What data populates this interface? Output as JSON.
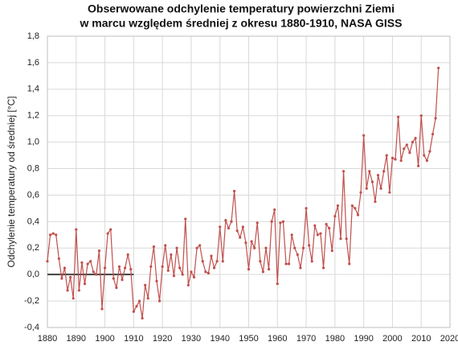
{
  "chart_data": {
    "type": "line",
    "title": [
      "Obserwowane odchylenie temperatury powierzchni Ziemi",
      "w marcu względem średniej z okresu 1880-1910, NASA GISS"
    ],
    "y_label": "Odchylenie temperatury od średniej [°C]",
    "x": [
      1880,
      1881,
      1882,
      1883,
      1884,
      1885,
      1886,
      1887,
      1888,
      1889,
      1890,
      1891,
      1892,
      1893,
      1894,
      1895,
      1896,
      1897,
      1898,
      1899,
      1900,
      1901,
      1902,
      1903,
      1904,
      1905,
      1906,
      1907,
      1908,
      1909,
      1910,
      1911,
      1912,
      1913,
      1914,
      1915,
      1916,
      1917,
      1918,
      1919,
      1920,
      1921,
      1922,
      1923,
      1924,
      1925,
      1926,
      1927,
      1928,
      1929,
      1930,
      1931,
      1932,
      1933,
      1934,
      1935,
      1936,
      1937,
      1938,
      1939,
      1940,
      1941,
      1942,
      1943,
      1944,
      1945,
      1946,
      1947,
      1948,
      1949,
      1950,
      1951,
      1952,
      1953,
      1954,
      1955,
      1956,
      1957,
      1958,
      1959,
      1960,
      1961,
      1962,
      1963,
      1964,
      1965,
      1966,
      1967,
      1968,
      1969,
      1970,
      1971,
      1972,
      1973,
      1974,
      1975,
      1976,
      1977,
      1978,
      1979,
      1980,
      1981,
      1982,
      1983,
      1984,
      1985,
      1986,
      1987,
      1988,
      1989,
      1990,
      1991,
      1992,
      1993,
      1994,
      1995,
      1996,
      1997,
      1998,
      1999,
      2000,
      2001,
      2002,
      2003,
      2004,
      2005,
      2006,
      2007,
      2008,
      2009,
      2010,
      2011,
      2012,
      2013,
      2014,
      2015,
      2016
    ],
    "series": [
      {
        "color": "#c0504d",
        "values": [
          0.1,
          0.3,
          0.31,
          0.3,
          0.12,
          -0.03,
          0.05,
          -0.12,
          -0.02,
          -0.18,
          0.34,
          -0.12,
          0.09,
          -0.07,
          0.08,
          0.1,
          0.02,
          0.0,
          0.18,
          -0.26,
          0.05,
          0.31,
          0.34,
          -0.03,
          -0.1,
          0.06,
          -0.04,
          0.05,
          0.15,
          0.04,
          -0.28,
          -0.24,
          -0.2,
          -0.33,
          -0.08,
          -0.18,
          0.06,
          0.21,
          -0.05,
          -0.2,
          0.06,
          0.22,
          0.03,
          0.15,
          -0.01,
          0.2,
          0.05,
          0.0,
          0.42,
          -0.08,
          0.02,
          -0.02,
          0.2,
          0.22,
          0.1,
          0.02,
          0.01,
          0.14,
          0.05,
          0.1,
          0.36,
          0.1,
          0.41,
          0.35,
          0.4,
          0.63,
          0.33,
          0.28,
          0.36,
          0.24,
          0.04,
          0.25,
          0.2,
          0.39,
          0.1,
          0.02,
          0.2,
          0.04,
          0.4,
          0.49,
          -0.07,
          0.39,
          0.4,
          0.08,
          0.08,
          0.3,
          0.2,
          0.15,
          0.05,
          0.2,
          0.5,
          0.22,
          0.1,
          0.37,
          0.3,
          0.31,
          0.05,
          0.38,
          0.35,
          0.18,
          0.44,
          0.52,
          0.27,
          0.78,
          0.27,
          0.08,
          0.52,
          0.5,
          0.45,
          0.62,
          1.05,
          0.65,
          0.78,
          0.7,
          0.55,
          0.75,
          0.65,
          0.78,
          0.9,
          0.62,
          0.88,
          0.87,
          1.19,
          0.86,
          0.95,
          0.98,
          0.92,
          1.0,
          1.03,
          0.82,
          1.2,
          0.9,
          0.86,
          0.93,
          1.06,
          1.18,
          1.56
        ]
      }
    ],
    "reference_line": {
      "x": [
        1880,
        1910
      ],
      "value": 0,
      "color": "#404040"
    },
    "xlim": [
      1880,
      2020
    ],
    "xticks": [
      1880,
      1890,
      1900,
      1910,
      1920,
      1930,
      1940,
      1950,
      1960,
      1970,
      1980,
      1990,
      2000,
      2010,
      2020
    ],
    "ylim": [
      -0.4,
      1.8
    ],
    "yticks": [
      {
        "value": -0.4,
        "label": "-0,4"
      },
      {
        "value": -0.2,
        "label": "-0,2"
      },
      {
        "value": 0,
        "label": "0,0"
      },
      {
        "value": 0.2,
        "label": "0,2"
      },
      {
        "value": 0.4,
        "label": "0,4"
      },
      {
        "value": 0.6,
        "label": "0,6"
      },
      {
        "value": 0.8,
        "label": "0,8"
      },
      {
        "value": 1.0,
        "label": "1,0"
      },
      {
        "value": 1.2,
        "label": "1,2"
      },
      {
        "value": 1.4,
        "label": "1,4"
      },
      {
        "value": 1.6,
        "label": "1,6"
      },
      {
        "value": 1.8,
        "label": "1,8"
      }
    ],
    "grid": true
  }
}
